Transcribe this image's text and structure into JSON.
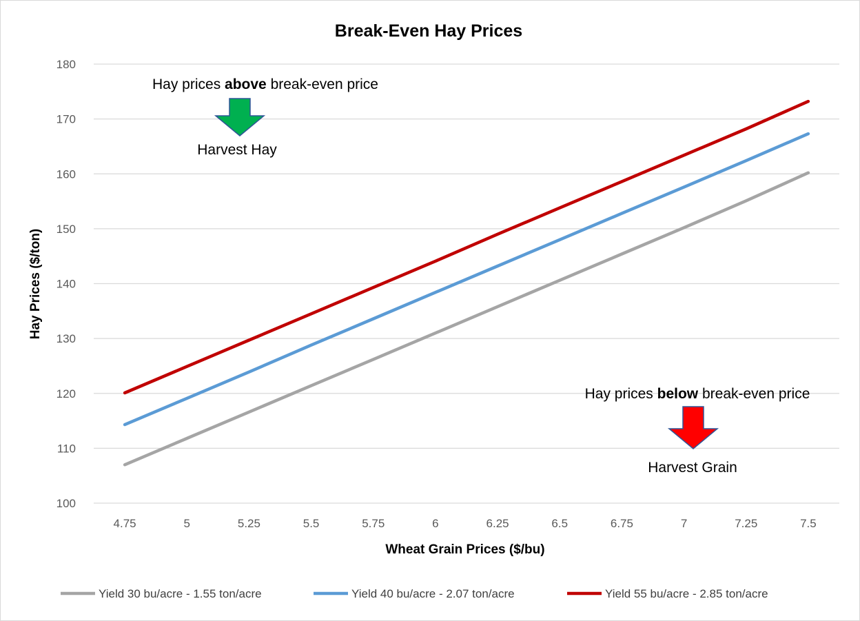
{
  "chart_data": {
    "type": "line",
    "title": "Break-Even Hay Prices",
    "xlabel": "Wheat Grain Prices ($/bu)",
    "ylabel": "Hay Prices ($/ton)",
    "x": [
      "4.75",
      "5",
      "5.25",
      "5.5",
      "5.75",
      "6",
      "6.25",
      "6.5",
      "6.75",
      "7",
      "7.25",
      "7.5"
    ],
    "ylim": [
      100,
      180
    ],
    "yticks": [
      "100",
      "110",
      "120",
      "130",
      "140",
      "150",
      "160",
      "170",
      "180"
    ],
    "grid": true,
    "legend_position": "bottom",
    "series": [
      {
        "name": "Yield 30 bu/acre - 1.55 ton/acre",
        "color": "#a5a5a5",
        "values": [
          107.0,
          111.8,
          116.6,
          121.4,
          126.2,
          131.0,
          135.8,
          140.6,
          145.4,
          150.2,
          155.1,
          160.2
        ]
      },
      {
        "name": "Yield 40 bu/acre - 2.07 ton/acre",
        "color": "#5b9bd5",
        "values": [
          114.3,
          119.1,
          123.9,
          128.8,
          133.6,
          138.4,
          143.2,
          148.0,
          152.8,
          157.6,
          162.4,
          167.3
        ]
      },
      {
        "name": "Yield 55 bu/acre - 2.85 ton/acre",
        "color": "#c00000",
        "values": [
          120.1,
          124.9,
          129.7,
          134.5,
          139.3,
          144.1,
          149.0,
          153.8,
          158.6,
          163.4,
          168.2,
          173.2
        ]
      }
    ],
    "annotations": {
      "above": {
        "line_before": "Hay prices ",
        "line_bold": "above",
        "line_after": " break-even price",
        "action": "Harvest Hay",
        "arrow_color": "#00b050"
      },
      "below": {
        "line_before": "Hay prices ",
        "line_bold": "below",
        "line_after": " break-even price",
        "action": "Harvest Grain",
        "arrow_color": "#ff0000"
      }
    }
  }
}
